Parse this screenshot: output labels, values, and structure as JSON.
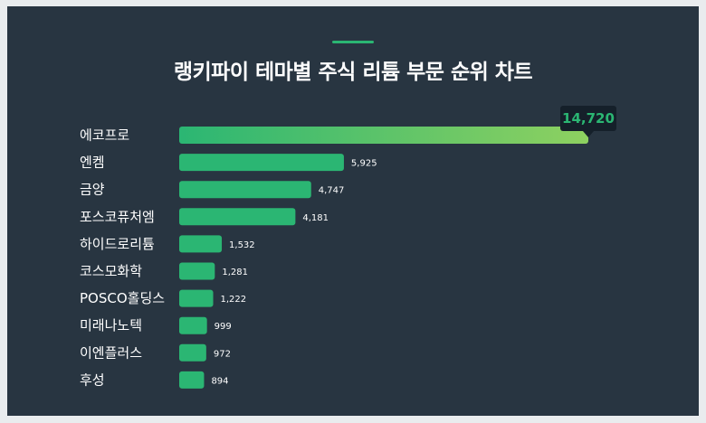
{
  "title": "랭키파이 테마별 주식 리튬 부문 순위 차트",
  "colors": {
    "background": "#283541",
    "bar": "#2bb673",
    "bar_gradient_end": "#8ed160",
    "callout_bg": "#15202a",
    "text": "#ffffff",
    "accent": "#2bb673"
  },
  "chart_data": {
    "type": "bar",
    "orientation": "horizontal",
    "title": "랭키파이 테마별 주식 리튬 부문 순위 차트",
    "categories": [
      "에코프로",
      "엔켐",
      "금양",
      "포스코퓨처엠",
      "하이드로리튬",
      "코스모화학",
      "POSCO홀딩스",
      "미래나노텍",
      "이엔플러스",
      "후성"
    ],
    "values": [
      14720,
      5925,
      4747,
      4181,
      1532,
      1281,
      1222,
      999,
      972,
      894
    ],
    "value_labels": [
      "14,720",
      "5,925",
      "4,747",
      "4,181",
      "1,532",
      "1,281",
      "1,222",
      "999",
      "972",
      "894"
    ],
    "highlight_index": 0,
    "grid": false,
    "legend": "none"
  }
}
